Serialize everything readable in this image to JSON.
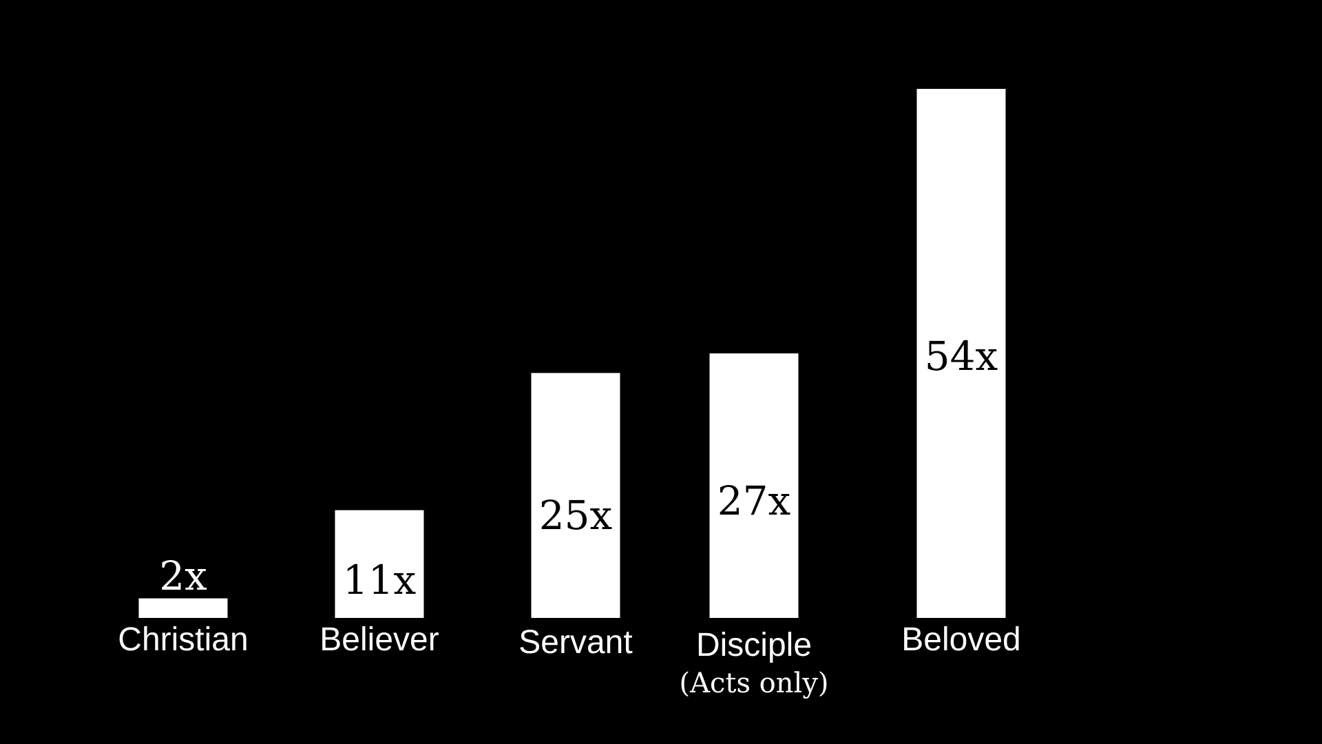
{
  "chart_data": {
    "type": "bar",
    "categories": [
      "Christian",
      "Believer",
      "Servant",
      "Disciple",
      "Beloved"
    ],
    "notes": [
      "",
      "",
      "",
      "(Acts only)",
      ""
    ],
    "values": [
      2,
      11,
      25,
      27,
      54
    ],
    "data_labels": [
      "2x",
      "11x",
      "25x",
      "27x",
      "54x"
    ],
    "title": "",
    "xlabel": "",
    "ylabel": "",
    "ylim": [
      0,
      54
    ],
    "grid": false,
    "legend": "none",
    "colors": {
      "background": "#000000",
      "bar": "#ffffff",
      "label_inside": "#000000",
      "label_outside": "#ffffff"
    }
  }
}
